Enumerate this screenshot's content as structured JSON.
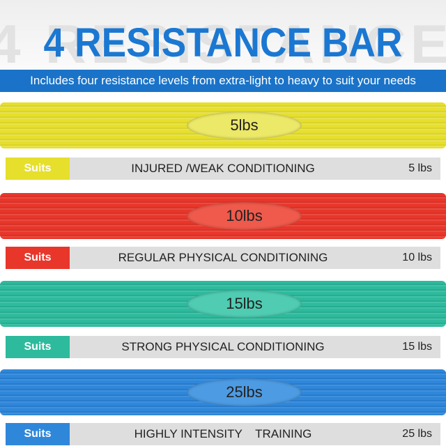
{
  "header": {
    "title": "4 RESISTANCE BAR",
    "subtitle": "Includes four resistance levels from extra-light to heavy to suit your needs"
  },
  "bars": [
    {
      "label": "5lbs",
      "suits": "Suits",
      "description": "INJURED /WEAK CONDITIONING",
      "weight": "5 lbs"
    },
    {
      "label": "10lbs",
      "suits": "Suits",
      "description": "REGULAR PHYSICAL CONDITIONING",
      "weight": "10 lbs"
    },
    {
      "label": "15lbs",
      "suits": "Suits",
      "description": "STRONG PHYSICAL CONDITIONING",
      "weight": "15 lbs"
    },
    {
      "label": "25lbs",
      "suits": "Suits",
      "description": "HIGHLY INTENSITY    TRAINING",
      "weight": "25 lbs"
    }
  ]
}
